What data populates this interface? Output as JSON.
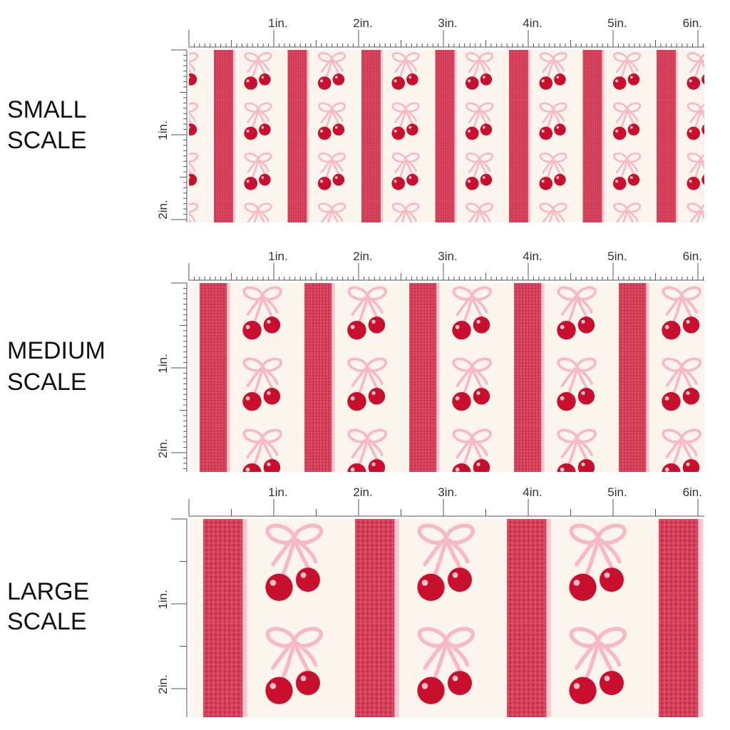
{
  "panels": [
    {
      "label": [
        "SMALL",
        "SCALE"
      ],
      "ruler_top": [
        "1in.",
        "2in.",
        "3in.",
        "4in.",
        "5in.",
        "6in."
      ],
      "ruler_side": [
        "1in.",
        "2in."
      ]
    },
    {
      "label": [
        "MEDIUM",
        "SCALE"
      ],
      "ruler_top": [
        "1in.",
        "2in.",
        "3in.",
        "4in.",
        "5in.",
        "6in."
      ],
      "ruler_side": [
        "1in.",
        "2in."
      ]
    },
    {
      "label": [
        "LARGE",
        "SCALE"
      ],
      "ruler_top": [
        "1in.",
        "2in.",
        "3in.",
        "4in.",
        "5in.",
        "6in."
      ],
      "ruler_side": [
        "1in.",
        "2in."
      ]
    }
  ]
}
